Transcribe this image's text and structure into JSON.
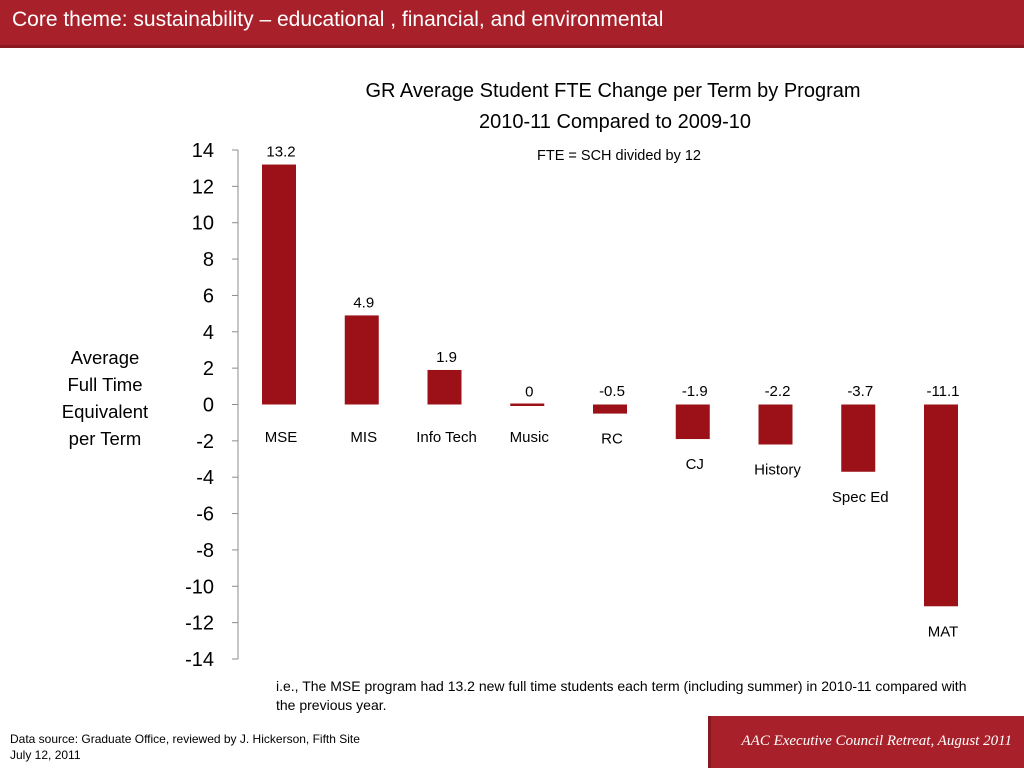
{
  "header": {
    "title": "Core theme: sustainability – educational , financial, and environmental"
  },
  "chart_data": {
    "type": "bar",
    "title": "GR Average Student FTE Change per Term by Program",
    "subtitle": "2010-11 Compared to 2009-10",
    "annotation": "FTE = SCH divided by 12",
    "ylabel": "Average Full Time Equivalent per Term",
    "ylim": [
      -14,
      14
    ],
    "yticks": [
      14,
      12,
      10,
      8,
      6,
      4,
      2,
      0,
      -2,
      -4,
      -6,
      -8,
      -10,
      -12,
      -14
    ],
    "categories": [
      "MSE",
      "MIS",
      "Info Tech",
      "Music",
      "RC",
      "CJ",
      "History",
      "Spec Ed",
      "MAT"
    ],
    "values": [
      13.2,
      4.9,
      1.9,
      0,
      -0.5,
      -1.9,
      -2.2,
      -3.7,
      -11.1
    ],
    "value_labels": [
      "13.2",
      "4.9",
      "1.9",
      "0",
      "-0.5",
      "-1.9",
      "-2.2",
      "-3.7",
      "-11.1"
    ],
    "bar_color": "#9b1117",
    "grid": false,
    "legend": "none"
  },
  "caption": "i.e., The MSE program had 13.2 new full time students each term (including summer)  in 2010-11 compared with the previous year.",
  "source": {
    "line1": "Data source: Graduate Office, reviewed by J. Hickerson, Fifth Site",
    "line2": "July 12, 2011"
  },
  "footer": {
    "text": "AAC Executive Council Retreat, August 2011"
  },
  "colors": {
    "brand": "#a8202a",
    "bar": "#9b1117"
  }
}
